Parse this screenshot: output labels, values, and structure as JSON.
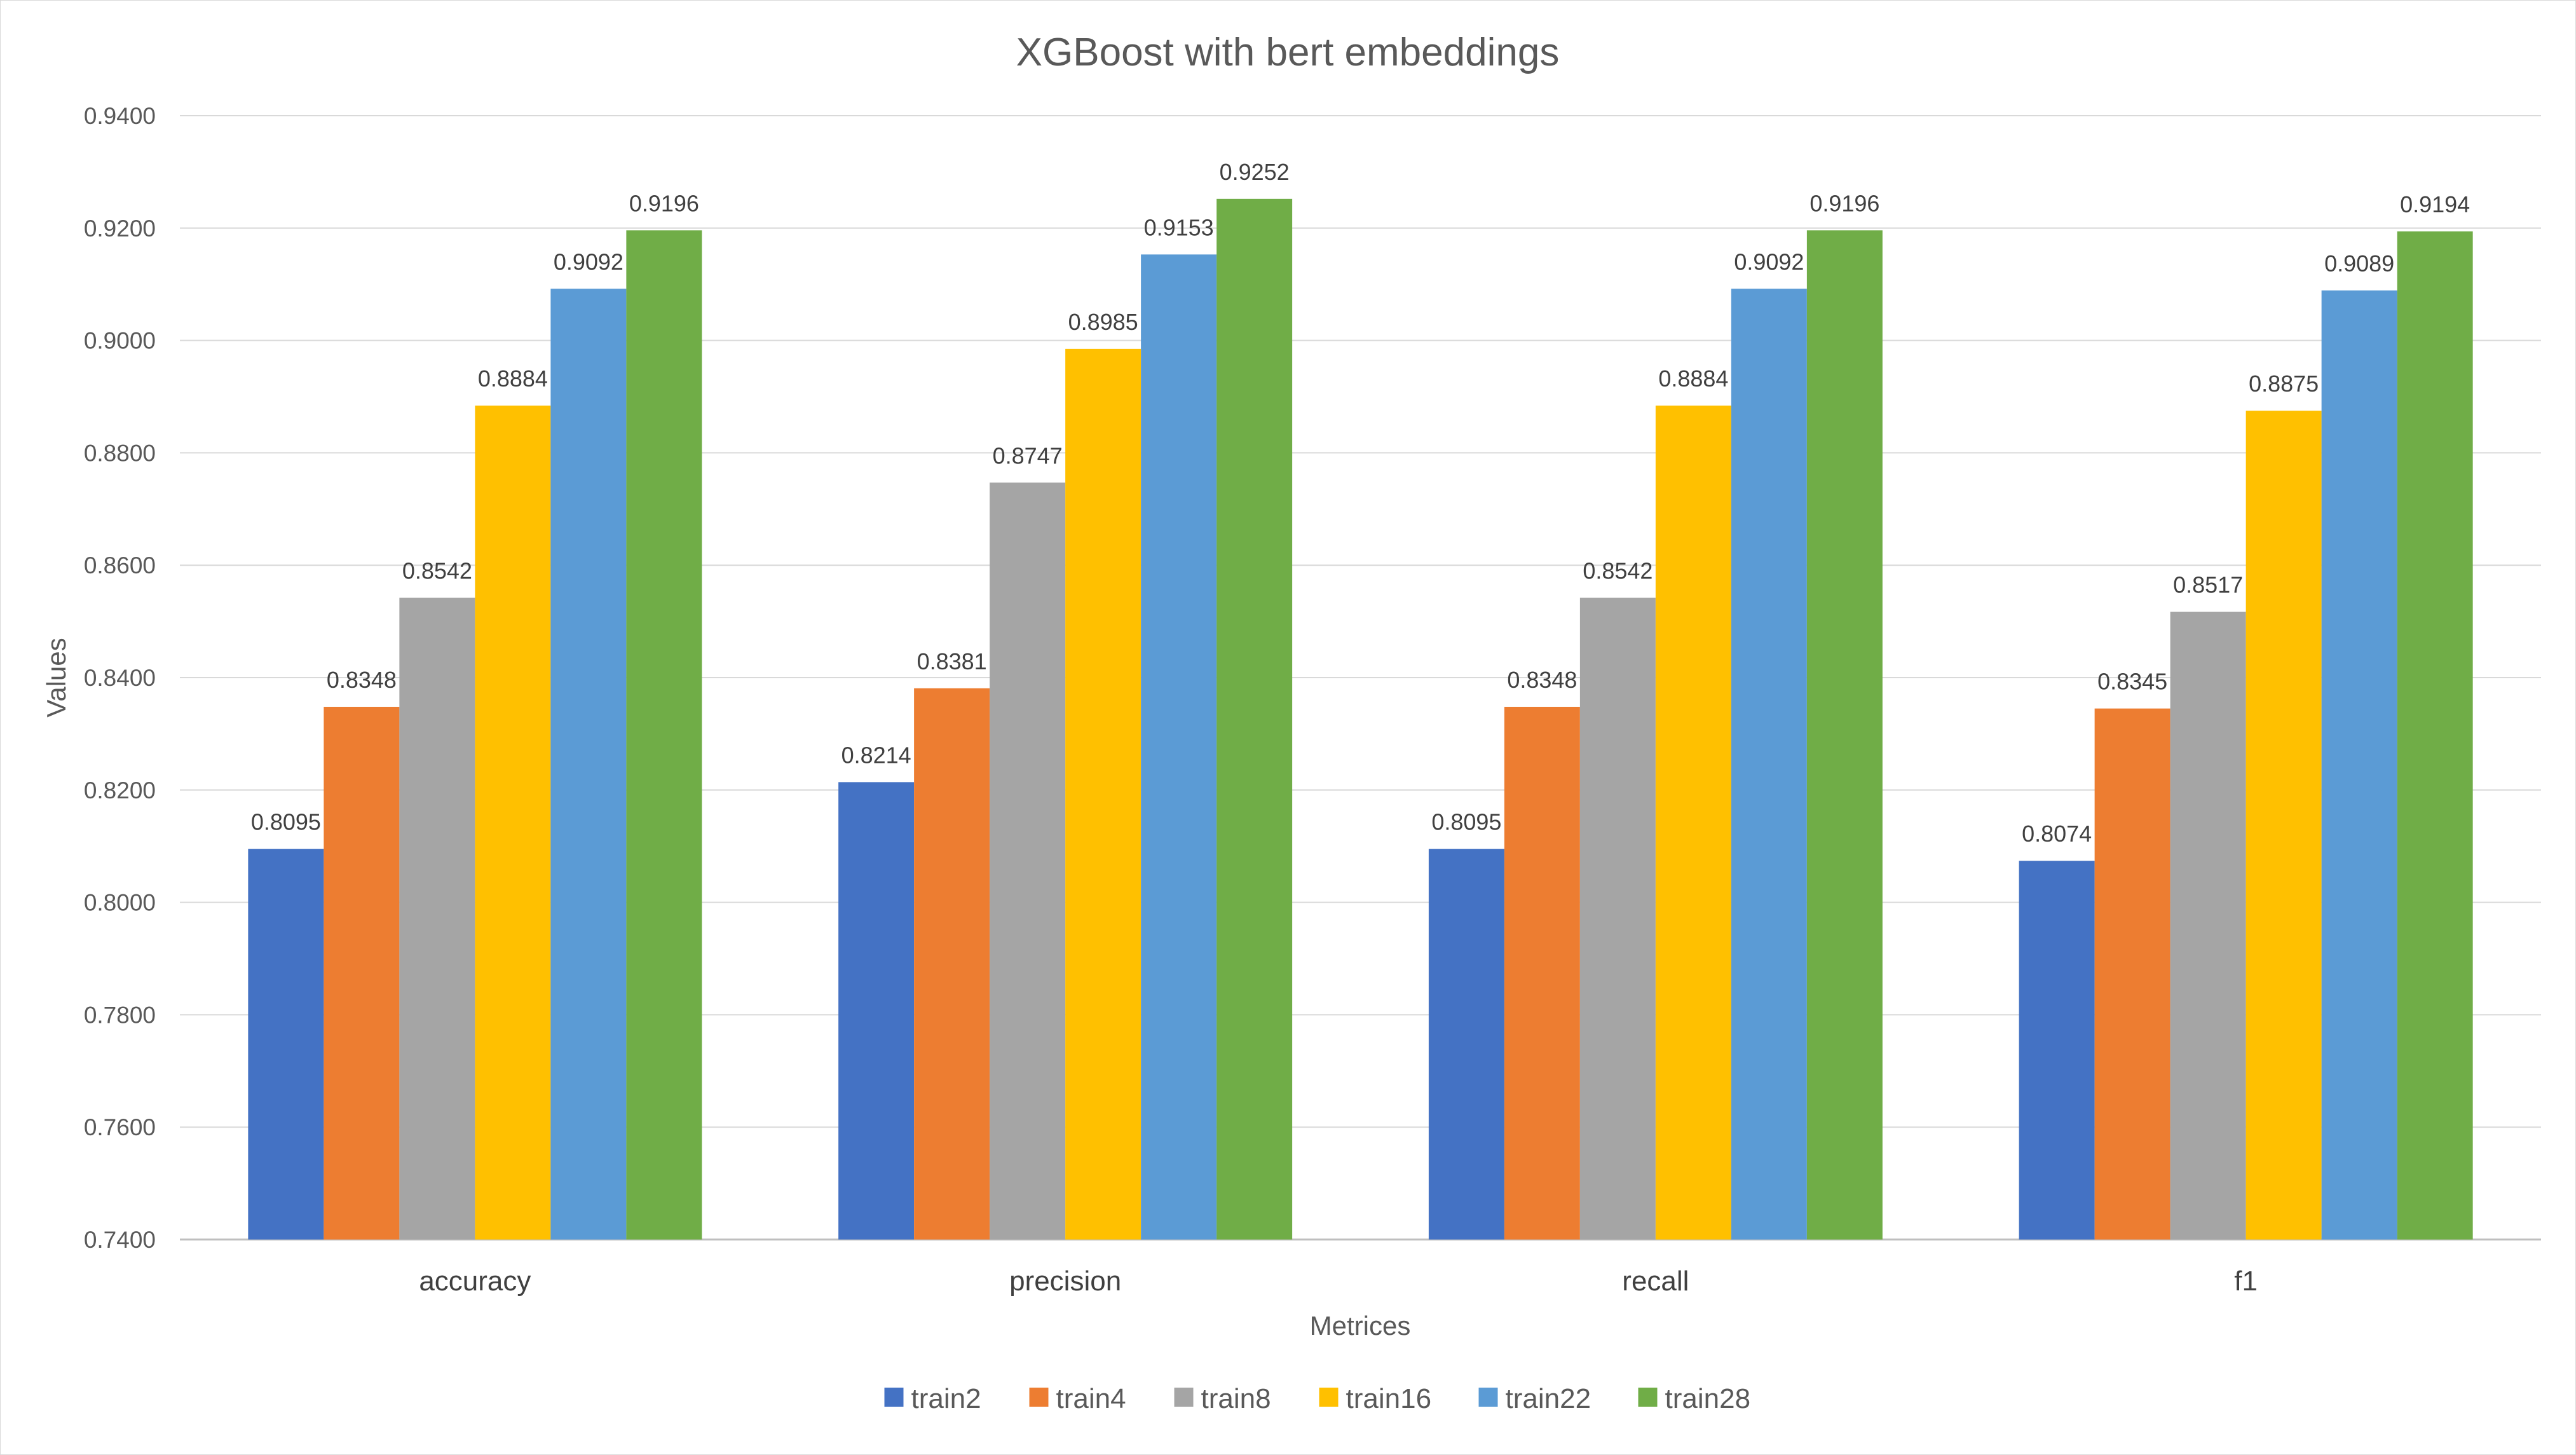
{
  "chart_data": {
    "type": "bar",
    "title": "XGBoost with bert embeddings",
    "xlabel": "Metrices",
    "ylabel": "Values",
    "ylim": [
      0.74,
      0.94
    ],
    "yticks": [
      "0.7400",
      "0.7600",
      "0.7800",
      "0.8000",
      "0.8200",
      "0.8400",
      "0.8600",
      "0.8800",
      "0.9000",
      "0.9200",
      "0.9400"
    ],
    "grid": true,
    "legend_position": "bottom",
    "categories": [
      "accuracy",
      "precision",
      "recall",
      "f1"
    ],
    "series": [
      {
        "name": "train2",
        "color": "#4472C4",
        "values": [
          0.8095,
          0.8214,
          0.8095,
          0.8074
        ]
      },
      {
        "name": "train4",
        "color": "#ED7D31",
        "values": [
          0.8348,
          0.8381,
          0.8348,
          0.8345
        ]
      },
      {
        "name": "train8",
        "color": "#A5A5A5",
        "values": [
          0.8542,
          0.8747,
          0.8542,
          0.8517
        ]
      },
      {
        "name": "train16",
        "color": "#FFC000",
        "values": [
          0.8884,
          0.8985,
          0.8884,
          0.8875
        ]
      },
      {
        "name": "train22",
        "color": "#5B9BD5",
        "values": [
          0.9092,
          0.9153,
          0.9092,
          0.9089
        ]
      },
      {
        "name": "train28",
        "color": "#70AD47",
        "values": [
          0.9196,
          0.9252,
          0.9196,
          0.9194
        ]
      }
    ]
  }
}
